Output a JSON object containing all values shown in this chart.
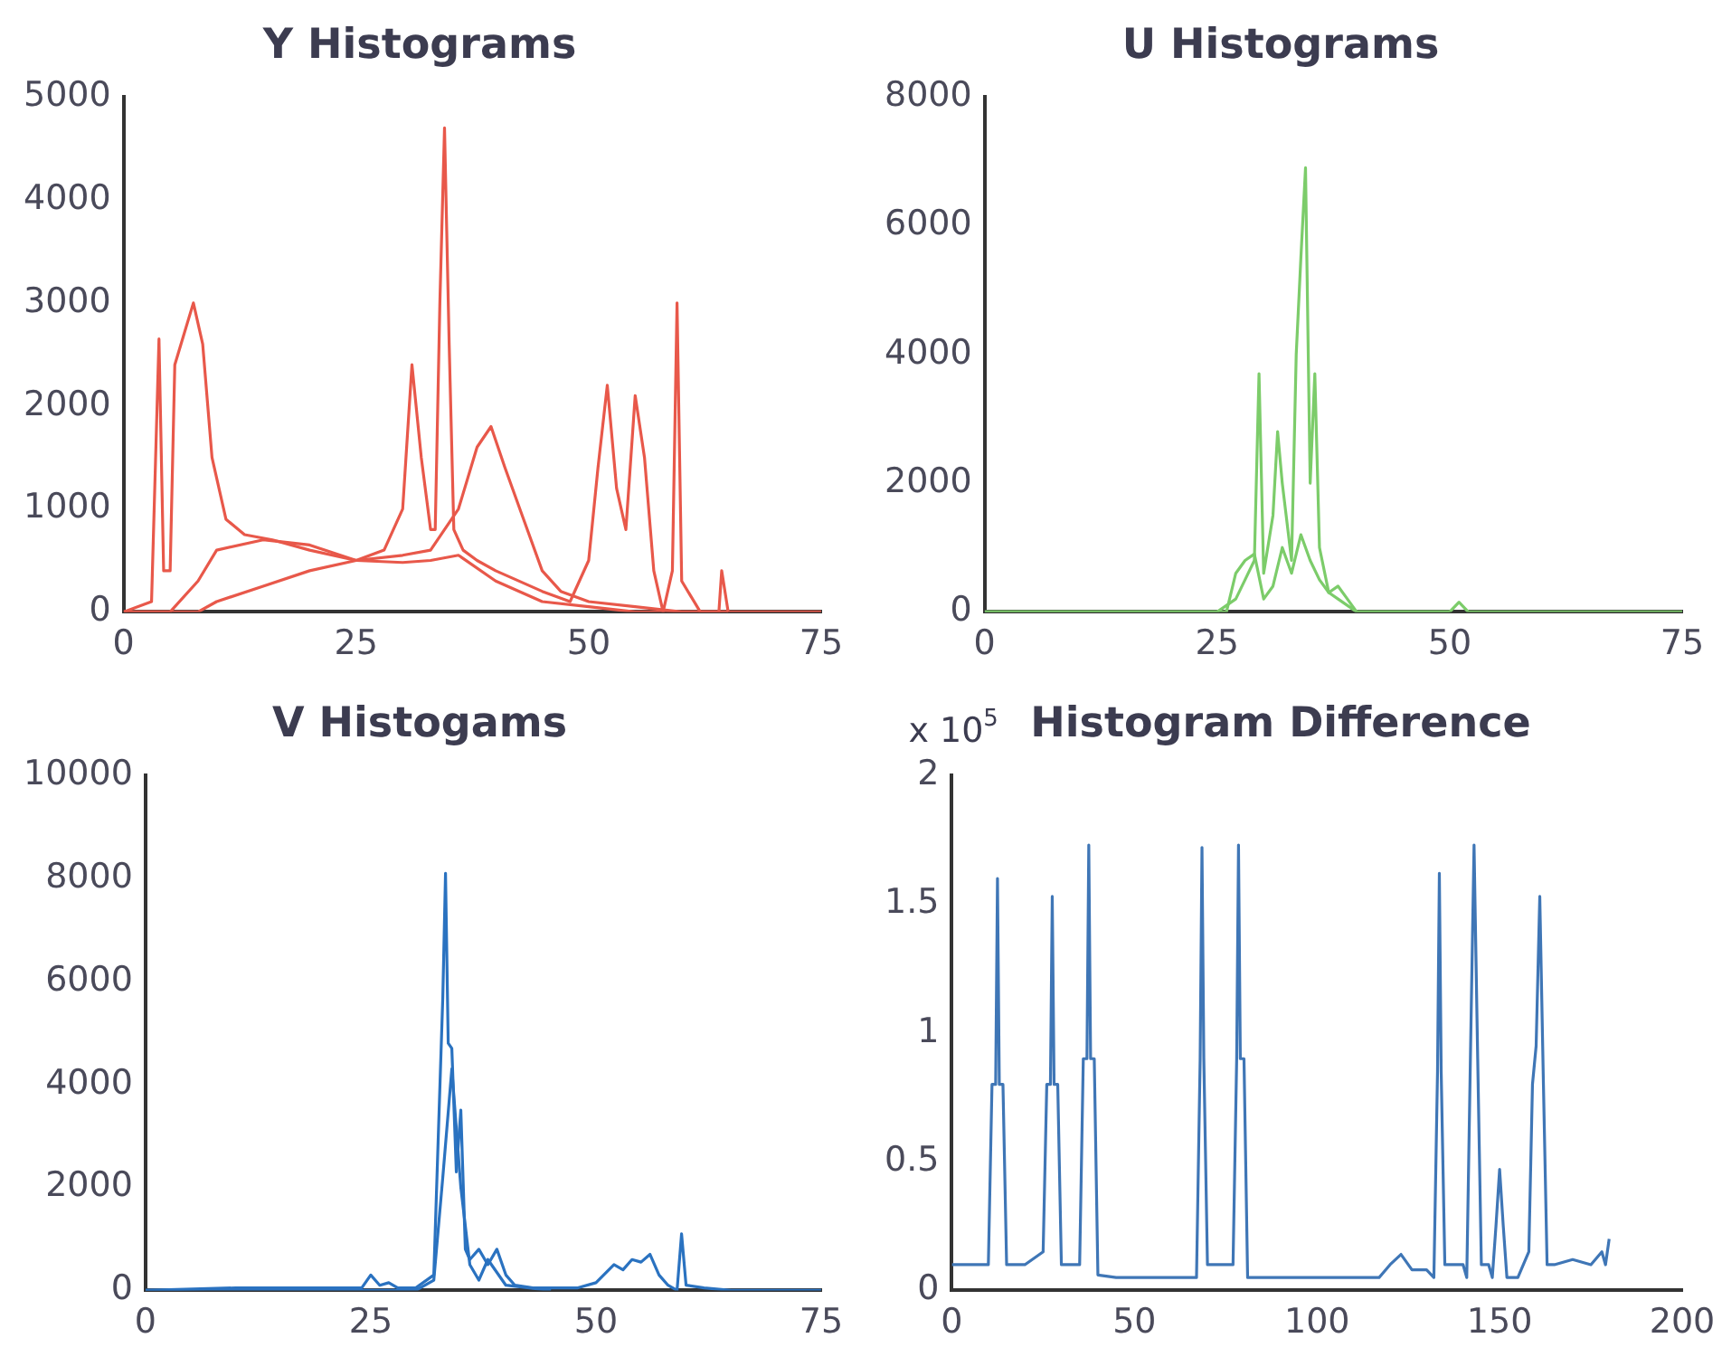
{
  "chart_data": [
    {
      "type": "line",
      "title": "Y Histograms",
      "xlim": [
        0,
        75
      ],
      "xticks": [
        0,
        25,
        50,
        75
      ],
      "ylim": [
        0,
        5000
      ],
      "yticks": [
        0,
        1000,
        2000,
        3000,
        4000,
        5000
      ],
      "grid": false,
      "legend": false,
      "marker": "none",
      "line_style": "solid",
      "series": [
        {
          "color": "#e8584a",
          "x": [
            0,
            3,
            3.8,
            4.3,
            5,
            5.5,
            6.5,
            7.5,
            8.5,
            9.5,
            11,
            13,
            16,
            20,
            25,
            30,
            33,
            36,
            40,
            45,
            50,
            55,
            60,
            65
          ],
          "values": [
            0,
            100,
            2650,
            400,
            400,
            2400,
            2700,
            3000,
            2600,
            1500,
            900,
            750,
            700,
            600,
            500,
            480,
            500,
            550,
            300,
            100,
            50,
            0,
            0,
            0
          ]
        },
        {
          "color": "#e8584a",
          "x": [
            0,
            5,
            8,
            10,
            15,
            20,
            25,
            28,
            30,
            31,
            32,
            33,
            33.5,
            34,
            34.5,
            35,
            35.5,
            36.5,
            38,
            40,
            45,
            48,
            50,
            51,
            52,
            53,
            54,
            55,
            56,
            57,
            58,
            59,
            59.5,
            60,
            62,
            64,
            64.3,
            65,
            75
          ],
          "values": [
            0,
            0,
            300,
            600,
            700,
            650,
            500,
            600,
            1000,
            2400,
            1500,
            800,
            800,
            3000,
            4700,
            2600,
            800,
            600,
            500,
            400,
            200,
            100,
            500,
            1400,
            2200,
            1200,
            800,
            2100,
            1500,
            400,
            0,
            400,
            3000,
            300,
            0,
            0,
            400,
            0,
            0
          ]
        },
        {
          "color": "#e8584a",
          "x": [
            0,
            8,
            10,
            15,
            20,
            25,
            30,
            33,
            36,
            38,
            39.5,
            41,
            43,
            45,
            47,
            50,
            55,
            60,
            65
          ],
          "values": [
            0,
            0,
            100,
            250,
            400,
            500,
            550,
            600,
            1000,
            1600,
            1800,
            1400,
            900,
            400,
            200,
            100,
            50,
            0,
            0
          ]
        }
      ]
    },
    {
      "type": "line",
      "title": "U Histograms",
      "xlim": [
        0,
        75
      ],
      "xticks": [
        0,
        25,
        50,
        75
      ],
      "ylim": [
        0,
        8000
      ],
      "yticks": [
        0,
        2000,
        4000,
        6000,
        8000
      ],
      "grid": false,
      "legend": false,
      "marker": "none",
      "line_style": "solid",
      "series": [
        {
          "color": "#7ccc6a",
          "x": [
            0,
            25,
            27,
            28,
            29,
            29.5,
            30,
            31,
            31.5,
            32,
            33,
            33.5,
            34,
            34.5,
            35,
            35.5,
            36,
            37,
            38,
            40,
            50,
            51,
            52,
            65,
            75
          ],
          "values": [
            0,
            0,
            200,
            500,
            800,
            3700,
            600,
            1500,
            2800,
            2000,
            800,
            4000,
            5500,
            6900,
            2000,
            3700,
            1000,
            300,
            200,
            0,
            0,
            150,
            0,
            0,
            0
          ]
        },
        {
          "color": "#7ccc6a",
          "x": [
            0,
            26,
            27,
            28,
            29,
            30,
            31,
            32,
            33,
            34,
            35,
            36,
            37,
            38,
            39,
            40,
            50
          ],
          "values": [
            0,
            0,
            600,
            800,
            900,
            200,
            400,
            1000,
            600,
            1200,
            800,
            500,
            300,
            400,
            200,
            0,
            0
          ]
        }
      ]
    },
    {
      "type": "line",
      "title": "V Histogams",
      "xlim": [
        0,
        75
      ],
      "xticks": [
        0,
        25,
        50,
        75
      ],
      "ylim": [
        0,
        10000
      ],
      "yticks": [
        0,
        2000,
        4000,
        6000,
        8000,
        10000
      ],
      "grid": false,
      "legend": false,
      "marker": "none",
      "line_style": "solid",
      "series": [
        {
          "color": "#2a72c0",
          "x": [
            0,
            10,
            20,
            24,
            25,
            26,
            27,
            28,
            30,
            32,
            33,
            33.3,
            33.6,
            34,
            34.5,
            35,
            35.5,
            36,
            37,
            38,
            39,
            40,
            41,
            43,
            48,
            50,
            52,
            53,
            54,
            55,
            56,
            57,
            58,
            59,
            59.5,
            60,
            62,
            65,
            75
          ],
          "values": [
            0,
            50,
            50,
            50,
            300,
            100,
            150,
            50,
            50,
            300,
            5700,
            8100,
            4800,
            4700,
            2300,
            3500,
            800,
            600,
            800,
            500,
            800,
            300,
            100,
            50,
            50,
            150,
            500,
            400,
            600,
            550,
            700,
            300,
            100,
            0,
            1100,
            100,
            50,
            0,
            0
          ]
        },
        {
          "color": "#2a72c0",
          "x": [
            0,
            30,
            32,
            33,
            34,
            35,
            36,
            37,
            38,
            40,
            45
          ],
          "values": [
            0,
            0,
            200,
            2200,
            4300,
            2000,
            500,
            200,
            600,
            100,
            0
          ]
        }
      ]
    },
    {
      "type": "line",
      "title": "Histogram Difference",
      "annotations": [
        "x 10$^{5}$"
      ],
      "xlim": [
        0,
        200
      ],
      "xticks": [
        0,
        50,
        100,
        150,
        200
      ],
      "ylim": [
        0,
        2
      ],
      "yticks": [
        0,
        0.5,
        1,
        1.5,
        2
      ],
      "grid": false,
      "legend": false,
      "marker": "none",
      "line_style": "solid",
      "series": [
        {
          "color": "#3f76b6",
          "x": [
            0,
            10,
            11,
            12,
            12.5,
            13,
            14,
            15,
            20,
            25,
            26,
            27,
            27.5,
            28,
            29,
            30,
            35,
            36,
            37,
            37.5,
            38,
            39,
            40,
            45,
            60,
            67,
            68,
            68.5,
            69,
            70,
            75,
            77,
            78,
            78.5,
            79,
            80,
            81,
            90,
            110,
            117,
            120,
            123,
            126,
            130,
            132,
            133,
            133.5,
            134,
            135,
            140,
            141,
            142,
            143,
            144,
            145,
            147,
            148,
            149,
            150,
            151,
            152,
            155,
            158,
            159,
            160,
            161,
            162,
            163,
            165,
            170,
            175,
            178,
            179,
            180
          ],
          "values": [
            0.1,
            0.1,
            0.8,
            0.8,
            1.6,
            0.8,
            0.8,
            0.1,
            0.1,
            0.15,
            0.8,
            0.8,
            1.53,
            0.8,
            0.8,
            0.1,
            0.1,
            0.9,
            0.9,
            1.73,
            0.9,
            0.9,
            0.06,
            0.05,
            0.05,
            0.05,
            0.9,
            1.72,
            0.9,
            0.1,
            0.1,
            0.1,
            0.9,
            1.73,
            0.9,
            0.9,
            0.05,
            0.05,
            0.05,
            0.05,
            0.1,
            0.14,
            0.08,
            0.08,
            0.05,
            0.85,
            1.62,
            0.85,
            0.1,
            0.1,
            0.05,
            0.9,
            1.73,
            0.9,
            0.1,
            0.1,
            0.05,
            0.25,
            0.47,
            0.25,
            0.05,
            0.05,
            0.15,
            0.8,
            0.95,
            1.53,
            0.8,
            0.1,
            0.1,
            0.12,
            0.1,
            0.15,
            0.1,
            0.2
          ]
        }
      ]
    }
  ]
}
